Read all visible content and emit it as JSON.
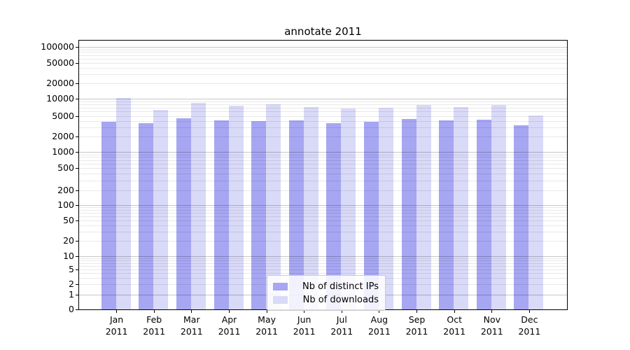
{
  "chart_data": {
    "type": "bar",
    "title": "annotate 2011",
    "xlabel": "",
    "ylabel": "",
    "yscale": "symlog",
    "ylim": [
      0,
      175000
    ],
    "yticks": [
      0,
      1,
      2,
      5,
      10,
      20,
      50,
      100,
      200,
      500,
      1000,
      2000,
      5000,
      10000,
      20000,
      50000,
      100000
    ],
    "grid": "horizontal major and log-minor gridlines drawn over bars",
    "legend_position": "lower center inside plot",
    "categories": [
      "Jan 2011",
      "Feb 2011",
      "Mar 2011",
      "Apr 2011",
      "May 2011",
      "Jun 2011",
      "Jul 2011",
      "Aug 2011",
      "Sep 2011",
      "Oct 2011",
      "Nov 2011",
      "Dec 2011"
    ],
    "series": [
      {
        "name": "Nb of distinct IPs",
        "color": "#a6a6f2",
        "values": [
          3900,
          3700,
          4500,
          4150,
          4000,
          4100,
          3600,
          3850,
          4400,
          4100,
          4300,
          3300
        ]
      },
      {
        "name": "Nb of downloads",
        "color": "#d9d9f8",
        "values": [
          10300,
          6500,
          8400,
          7600,
          8000,
          7200,
          6700,
          7000,
          7900,
          7200,
          7800,
          5200
        ]
      }
    ],
    "colors": {
      "axis": "#000000",
      "background": "#ffffff",
      "major_grid": "#c7c7c7",
      "minor_grid": "#ebebeb"
    }
  }
}
